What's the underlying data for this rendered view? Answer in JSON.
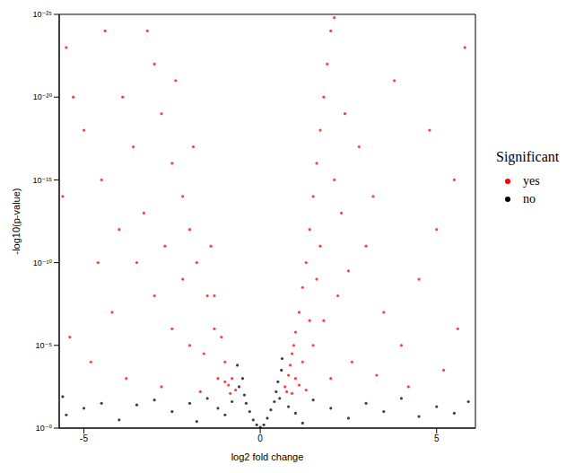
{
  "chart_data": {
    "type": "scatter",
    "x_label": "log2 fold change",
    "y_label": "-log10(p-value)",
    "xlim": [
      -5.7,
      6.1
    ],
    "xticks": [
      -5,
      0,
      5
    ],
    "ylim": [
      0,
      25
    ],
    "yticks": [
      {
        "value": 0,
        "label": "10⁻⁰"
      },
      {
        "value": 5,
        "label": "10⁻⁵"
      },
      {
        "value": 10,
        "label": "10⁻¹⁰"
      },
      {
        "value": 15,
        "label": "10⁻¹⁵"
      },
      {
        "value": 20,
        "label": "10⁻²⁰"
      },
      {
        "value": 25,
        "label": "10⁻²⁵"
      }
    ],
    "grid": false,
    "legend": "right",
    "legend_title": "Significant",
    "marker": "circle",
    "series": [
      {
        "name": "yes",
        "color": "#ff0000",
        "x": [
          0.7,
          0.8,
          0.9,
          1.0,
          1.1,
          1.2,
          1.3,
          1.4,
          1.5,
          1.6,
          1.7,
          1.8,
          1.9,
          2.0,
          2.1,
          0.75,
          0.85,
          1.0,
          1.2,
          1.5,
          1.8,
          2.2,
          2.5,
          3.0,
          3.5,
          4.0,
          4.5,
          5.0,
          5.5,
          5.8,
          3.2,
          2.8,
          2.4,
          2.3,
          1.6,
          1.1,
          0.9,
          1.3,
          2.0,
          2.6,
          3.3,
          4.2,
          5.2,
          5.6,
          4.8,
          3.8,
          1.4,
          1.7,
          2.1,
          0.95,
          -0.7,
          -0.8,
          -0.9,
          -1.0,
          -1.1,
          -1.3,
          -1.5,
          -1.8,
          -2.0,
          -2.2,
          -2.5,
          -2.8,
          -3.0,
          -3.2,
          -1.2,
          -1.6,
          -2.0,
          -2.5,
          -3.0,
          -3.5,
          -4.0,
          -4.5,
          -5.0,
          -5.3,
          -5.5,
          -1.4,
          -1.9,
          -2.4,
          -3.6,
          -4.2,
          -4.8,
          -5.4,
          -3.8,
          -2.8,
          -1.7,
          -0.85,
          -2.2,
          -3.3,
          -4.6,
          -5.6,
          -1.0,
          -1.3,
          -2.7,
          -3.9,
          -4.4
        ],
        "values": [
          2.5,
          3.2,
          4.5,
          5.8,
          7,
          8.5,
          10,
          12,
          14,
          16,
          18,
          20,
          22,
          24,
          24.8,
          2.2,
          3.8,
          3,
          4,
          5,
          6.5,
          8,
          9.5,
          11,
          7,
          5,
          9,
          12,
          15,
          23,
          14,
          17,
          19,
          13,
          9,
          2.6,
          2.1,
          2.3,
          3,
          4,
          3.2,
          2.5,
          3.5,
          6,
          18,
          21,
          6.5,
          11,
          15,
          5,
          2.3,
          3,
          2.6,
          4,
          5.5,
          6,
          8,
          10,
          12,
          14,
          16,
          19,
          22,
          24,
          3,
          4.5,
          5,
          6,
          8,
          10,
          12,
          15,
          18,
          20,
          23,
          11,
          17,
          21,
          17,
          7,
          4,
          5.5,
          3,
          2.5,
          2.2,
          2.1,
          9,
          13,
          10,
          14,
          2.8,
          8,
          11,
          20,
          24
        ]
      },
      {
        "name": "no",
        "color": "#000000",
        "x": [
          -5.5,
          -5.0,
          -4.5,
          -4.0,
          -3.5,
          -3.0,
          -2.5,
          -2.0,
          -1.5,
          -1.2,
          -1.0,
          -0.8,
          -0.6,
          -0.5,
          -0.4,
          -0.3,
          -0.2,
          -0.1,
          0.0,
          0.1,
          0.2,
          0.3,
          0.4,
          0.5,
          0.6,
          0.55,
          0.8,
          1.0,
          1.5,
          2.0,
          2.5,
          3.0,
          3.5,
          4.0,
          4.5,
          5.0,
          5.5,
          5.9,
          -0.45,
          0.45,
          -5.6,
          -1.8,
          1.2,
          -0.65,
          0.62
        ],
        "values": [
          0.8,
          1.2,
          1.5,
          0.5,
          1.4,
          1.7,
          1,
          1.5,
          1.8,
          1.2,
          0.8,
          1.6,
          2.5,
          3,
          1.5,
          1,
          0.5,
          0.2,
          0.05,
          0.2,
          0.6,
          1.1,
          1.6,
          2.8,
          3.5,
          1.8,
          1.3,
          0.9,
          1.7,
          1.2,
          0.6,
          1.5,
          1,
          1.8,
          0.7,
          1.3,
          0.9,
          1.6,
          2,
          2.2,
          1.9,
          0.4,
          0.3,
          3.8,
          4.2
        ]
      }
    ]
  }
}
